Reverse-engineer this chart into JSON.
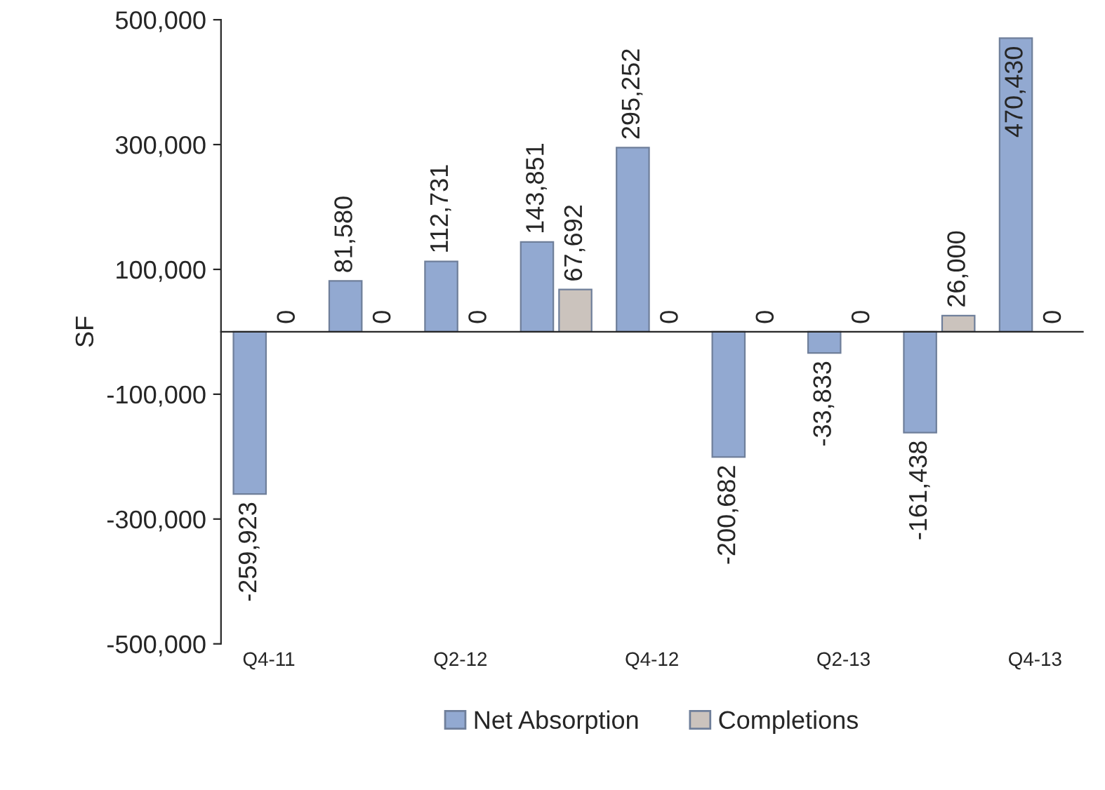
{
  "chart_data": {
    "type": "bar",
    "ylabel": "SF",
    "categories": [
      "Q4-11",
      null,
      "Q2-12",
      null,
      "Q4-12",
      null,
      "Q2-13",
      null,
      "Q4-13"
    ],
    "series": [
      {
        "name": "Net Absorption",
        "color": "#92a9d1",
        "values": [
          -259923,
          81580,
          112731,
          143851,
          295252,
          -200682,
          -33833,
          -161438,
          470430
        ],
        "value_labels": [
          "-259,923",
          "81,580",
          "112,731",
          "143,851",
          "295,252",
          "-200,682",
          "-33,833",
          "-161,438",
          "470,430"
        ]
      },
      {
        "name": "Completions",
        "color": "#cbc3bd",
        "values": [
          0,
          0,
          0,
          67692,
          0,
          0,
          0,
          26000,
          0
        ],
        "value_labels": [
          "0",
          "0",
          "0",
          "67,692",
          "0",
          "0",
          "0",
          "26,000",
          "0"
        ]
      }
    ],
    "ylim": [
      -500000,
      500000
    ],
    "yticks": [
      {
        "value": -500000,
        "label": "-500,000"
      },
      {
        "value": -300000,
        "label": "-300,000"
      },
      {
        "value": -100000,
        "label": "-100,000"
      },
      {
        "value": 100000,
        "label": "100,000"
      },
      {
        "value": 300000,
        "label": "300,000"
      },
      {
        "value": 500000,
        "label": "500,000"
      }
    ],
    "legend": "bottom",
    "grid": false
  }
}
